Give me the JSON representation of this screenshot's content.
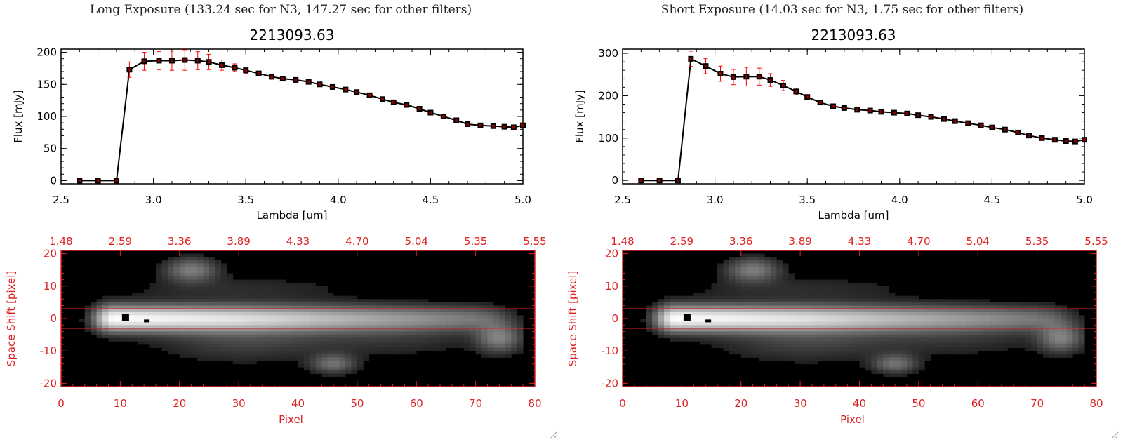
{
  "panels": [
    {
      "id": "long",
      "title": "Long Exposure (133.24 sec for N3, 147.27 sec for other filters)"
    },
    {
      "id": "short",
      "title": "Short Exposure (14.03 sec for N3, 1.75 sec for other filters)"
    }
  ],
  "colors": {
    "errorbar": "#ff0000",
    "axes_bottom": "#dd2222",
    "line": "#000000"
  },
  "chart_data": [
    {
      "type": "line",
      "title": "2213093.63",
      "xlabel": "Lambda [um]",
      "ylabel": "Flux [mJy]",
      "xlim": [
        2.5,
        5.0
      ],
      "ylim": [
        -5,
        205
      ],
      "xticks": [
        "2.5",
        "3.0",
        "3.5",
        "4.0",
        "4.5",
        "5.0"
      ],
      "yticks": [
        "0",
        "50",
        "100",
        "150",
        "200"
      ],
      "ytick_values": [
        0,
        50,
        100,
        150,
        200
      ],
      "x": [
        2.6,
        2.7,
        2.8,
        2.87,
        2.95,
        3.03,
        3.1,
        3.17,
        3.24,
        3.3,
        3.37,
        3.44,
        3.5,
        3.57,
        3.64,
        3.7,
        3.77,
        3.84,
        3.9,
        3.97,
        4.04,
        4.1,
        4.17,
        4.24,
        4.3,
        4.37,
        4.44,
        4.5,
        4.57,
        4.64,
        4.7,
        4.77,
        4.84,
        4.9,
        4.95,
        5.0
      ],
      "y": [
        0,
        0,
        0,
        173,
        186,
        187,
        187,
        188,
        187,
        185,
        180,
        176,
        172,
        167,
        162,
        159,
        157,
        154,
        150,
        146,
        142,
        138,
        133,
        127,
        122,
        118,
        112,
        106,
        100,
        94,
        88,
        86,
        85,
        84,
        83,
        86
      ],
      "err": [
        0,
        0,
        0,
        12,
        14,
        14,
        15,
        16,
        14,
        12,
        8,
        6,
        5,
        4,
        4,
        3,
        3,
        3,
        3,
        3,
        3,
        3,
        3,
        3,
        3,
        3,
        3,
        3,
        3,
        3,
        3,
        3,
        3,
        3,
        4,
        4
      ]
    },
    {
      "type": "line",
      "title": "2213093.63",
      "xlabel": "Lambda [um]",
      "ylabel": "Flux [mJy]",
      "xlim": [
        2.5,
        5.0
      ],
      "ylim": [
        -8,
        310
      ],
      "xticks": [
        "2.5",
        "3.0",
        "3.5",
        "4.0",
        "4.5",
        "5.0"
      ],
      "yticks": [
        "0",
        "100",
        "200",
        "300"
      ],
      "ytick_values": [
        0,
        100,
        200,
        300
      ],
      "x": [
        2.6,
        2.7,
        2.8,
        2.87,
        2.95,
        3.03,
        3.1,
        3.17,
        3.24,
        3.3,
        3.37,
        3.44,
        3.5,
        3.57,
        3.64,
        3.7,
        3.77,
        3.84,
        3.9,
        3.97,
        4.04,
        4.1,
        4.17,
        4.24,
        4.3,
        4.37,
        4.44,
        4.5,
        4.57,
        4.64,
        4.7,
        4.77,
        4.84,
        4.9,
        4.95,
        5.0
      ],
      "y": [
        0,
        0,
        0,
        287,
        270,
        252,
        244,
        245,
        245,
        237,
        224,
        210,
        197,
        184,
        175,
        171,
        167,
        165,
        162,
        160,
        158,
        154,
        150,
        145,
        140,
        135,
        130,
        125,
        120,
        113,
        106,
        100,
        96,
        93,
        92,
        96
      ],
      "err": [
        0,
        0,
        0,
        18,
        18,
        18,
        18,
        22,
        20,
        15,
        12,
        8,
        5,
        4,
        4,
        3,
        3,
        3,
        3,
        3,
        3,
        3,
        3,
        3,
        3,
        3,
        3,
        3,
        3,
        3,
        3,
        3,
        3,
        3,
        4,
        4
      ]
    },
    {
      "type": "heatmap",
      "xlabel": "Pixel",
      "ylabel": "Space Shift [pixel]",
      "xlim": [
        0,
        80
      ],
      "ylim": [
        -21,
        21
      ],
      "xticks": [
        "0",
        "10",
        "20",
        "30",
        "40",
        "50",
        "60",
        "70",
        "80"
      ],
      "yticks": [
        "20",
        "10",
        "0",
        "-10",
        "-20"
      ],
      "ytick_values": [
        20,
        10,
        0,
        -10,
        -20
      ],
      "top_axis_ticks": [
        "1.48",
        "2.59",
        "3.36",
        "3.89",
        "4.33",
        "4.70",
        "5.04",
        "5.35",
        "5.55"
      ],
      "extraction_band": [
        -3,
        3
      ]
    },
    {
      "type": "heatmap",
      "xlabel": "Pixel",
      "ylabel": "Space Shift [pixel]",
      "xlim": [
        0,
        80
      ],
      "ylim": [
        -21,
        21
      ],
      "xticks": [
        "0",
        "10",
        "20",
        "30",
        "40",
        "50",
        "60",
        "70",
        "80"
      ],
      "yticks": [
        "20",
        "10",
        "0",
        "-10",
        "-20"
      ],
      "ytick_values": [
        20,
        10,
        0,
        -10,
        -20
      ],
      "top_axis_ticks": [
        "1.48",
        "2.59",
        "3.36",
        "3.89",
        "4.33",
        "4.70",
        "5.04",
        "5.35",
        "5.55"
      ],
      "extraction_band": [
        -3,
        3
      ]
    }
  ]
}
